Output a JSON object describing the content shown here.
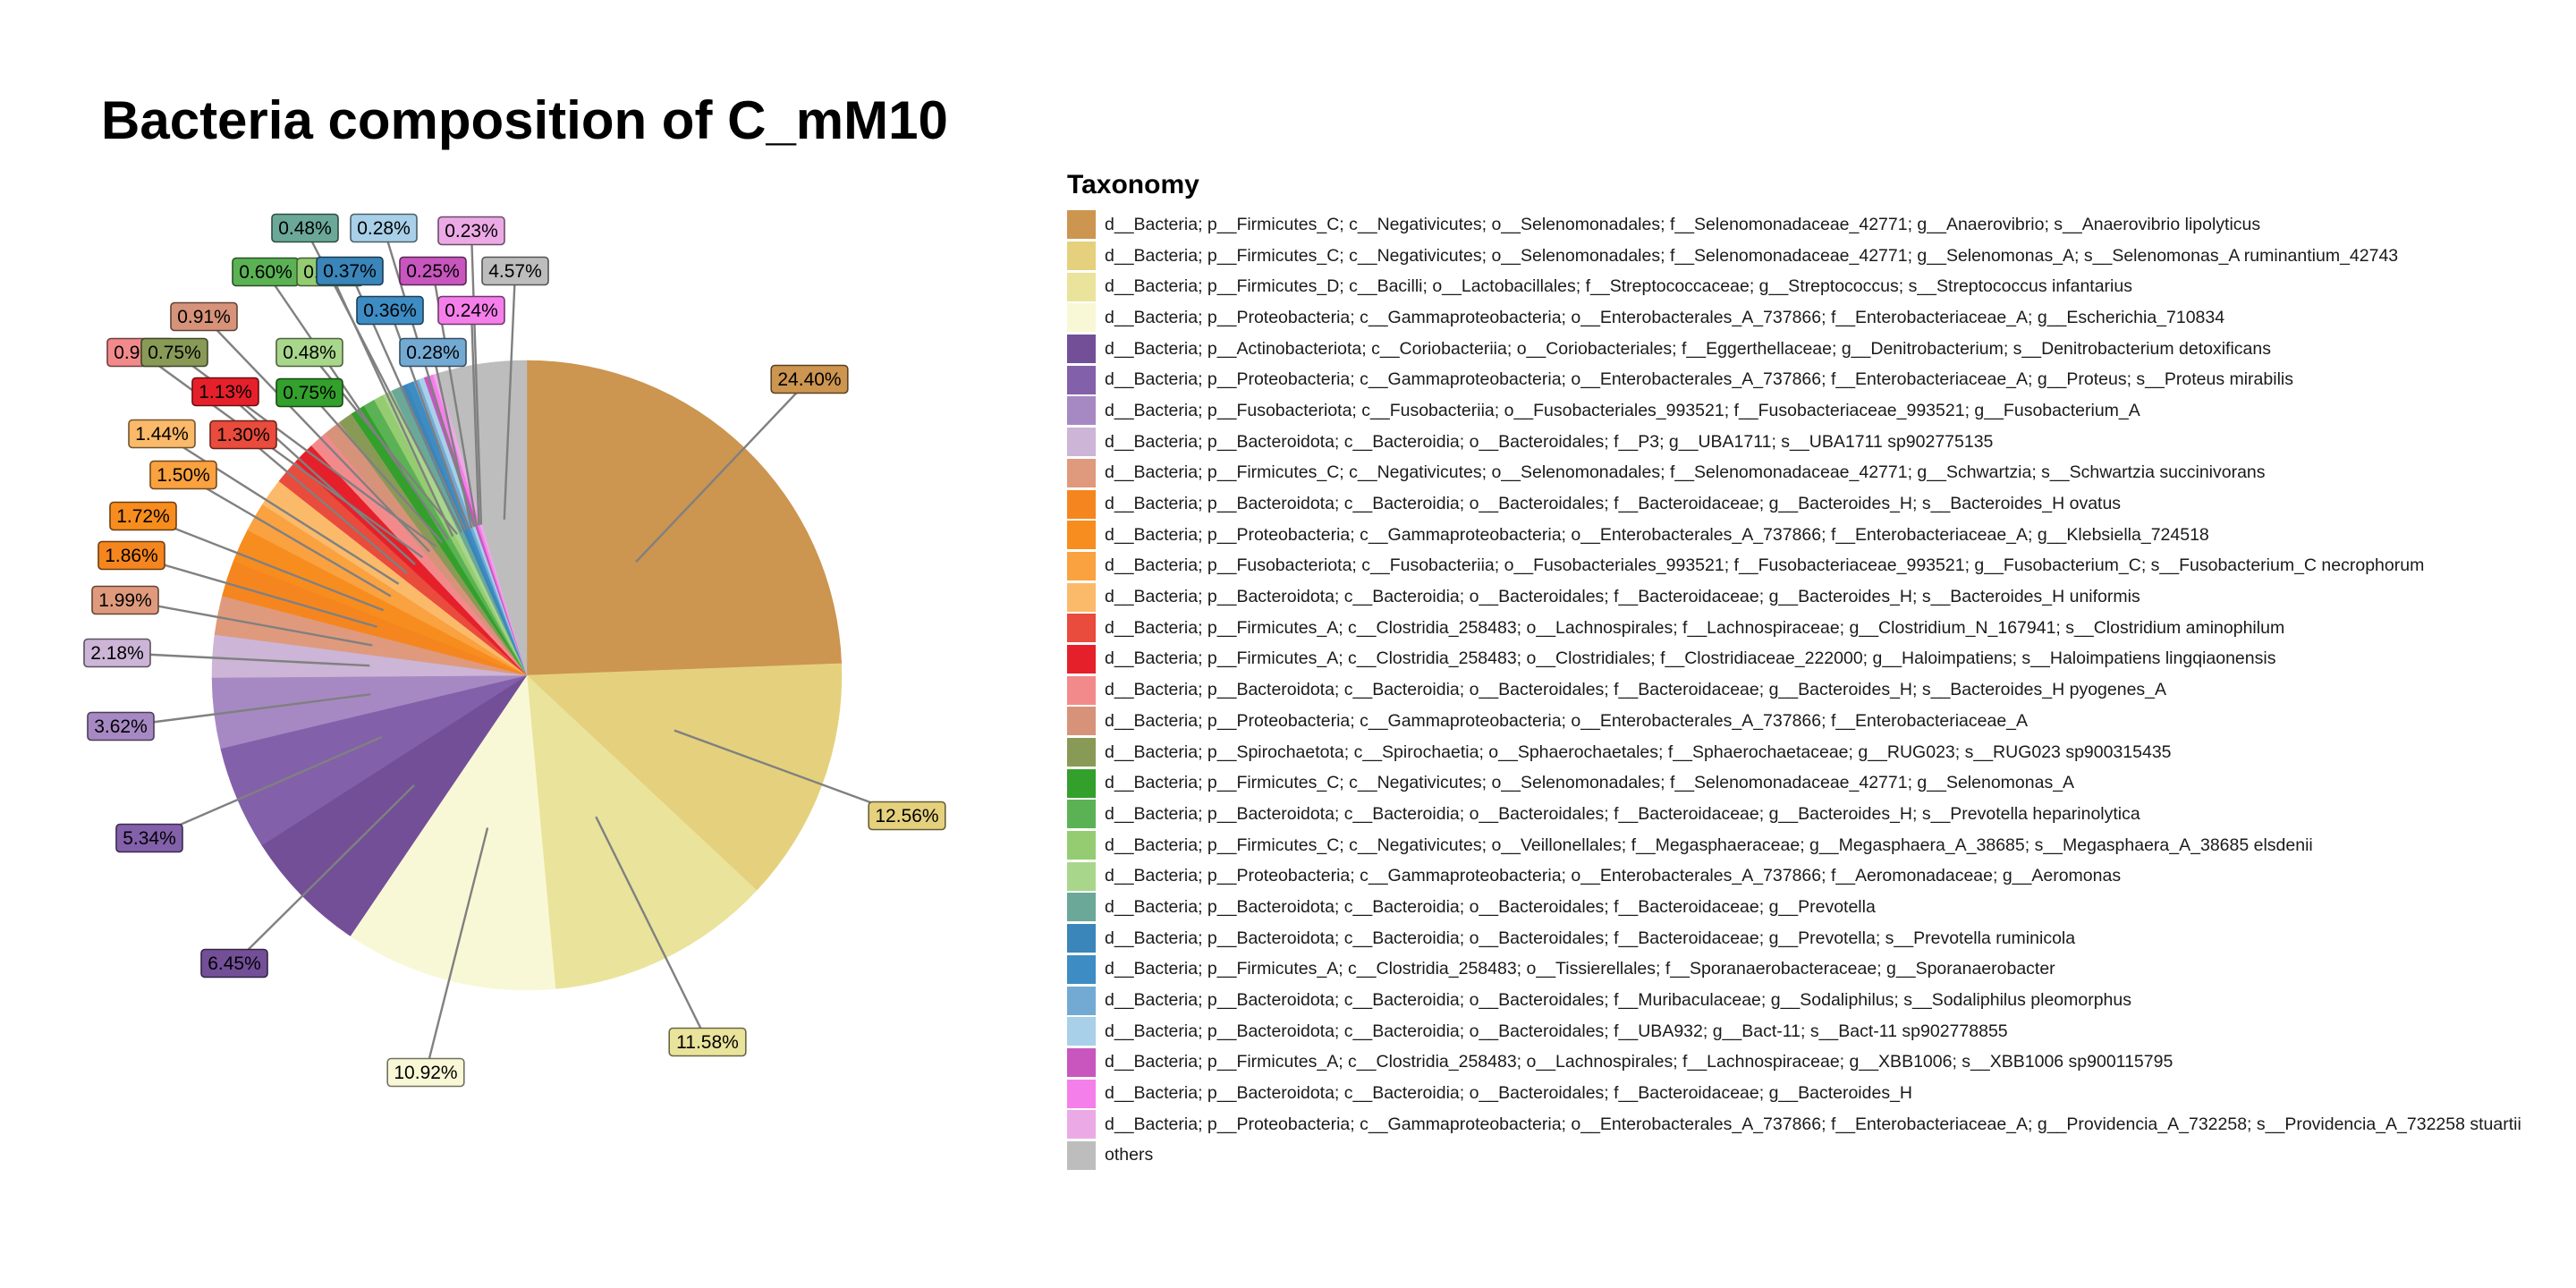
{
  "chart_data": {
    "type": "pie",
    "title": "Bacteria composition of C_mM10",
    "legend_title": "Taxonomy",
    "legend_position": "right",
    "slices": [
      {
        "label": "d__Bacteria; p__Firmicutes_C; c__Negativicutes; o__Selenomonadales; f__Selenomonadaceae_42771; g__Anaerovibrio; s__Anaerovibrio lipolyticus",
        "value": 24.4,
        "display": "24.40%",
        "color": "#CC9550"
      },
      {
        "label": "d__Bacteria; p__Firmicutes_C; c__Negativicutes; o__Selenomonadales; f__Selenomonadaceae_42771; g__Selenomonas_A; s__Selenomonas_A ruminantium_42743",
        "value": 12.56,
        "display": "12.56%",
        "color": "#E5D17D"
      },
      {
        "label": "d__Bacteria; p__Firmicutes_D; c__Bacilli; o__Lactobacillales; f__Streptococcaceae; g__Streptococcus; s__Streptococcus infantarius",
        "value": 11.58,
        "display": "11.58%",
        "color": "#EAE39B"
      },
      {
        "label": "d__Bacteria; p__Proteobacteria; c__Gammaproteobacteria; o__Enterobacterales_A_737866; f__Enterobacteriaceae_A; g__Escherichia_710834",
        "value": 10.92,
        "display": "10.92%",
        "color": "#F9F8D6"
      },
      {
        "label": "d__Bacteria; p__Actinobacteriota; c__Coriobacteriia; o__Coriobacteriales; f__Eggerthellaceae; g__Denitrobacterium; s__Denitrobacterium detoxificans",
        "value": 6.45,
        "display": "6.45%",
        "color": "#734F98"
      },
      {
        "label": "d__Bacteria; p__Proteobacteria; c__Gammaproteobacteria; o__Enterobacterales_A_737866; f__Enterobacteriaceae_A; g__Proteus; s__Proteus mirabilis",
        "value": 5.34,
        "display": "5.34%",
        "color": "#8360AA"
      },
      {
        "label": "d__Bacteria; p__Fusobacteriota; c__Fusobacteriia; o__Fusobacteriales_993521; f__Fusobacteriaceae_993521; g__Fusobacterium_A",
        "value": 3.62,
        "display": "3.62%",
        "color": "#A689C3"
      },
      {
        "label": "d__Bacteria; p__Bacteroidota; c__Bacteroidia; o__Bacteroidales; f__P3; g__UBA1711; s__UBA1711 sp902775135",
        "value": 2.18,
        "display": "2.18%",
        "color": "#CCB5D6"
      },
      {
        "label": "d__Bacteria; p__Firmicutes_C; c__Negativicutes; o__Selenomonadales; f__Selenomonadaceae_42771; g__Schwartzia; s__Schwartzia succinivorans",
        "value": 1.99,
        "display": "1.99%",
        "color": "#DF9A7D"
      },
      {
        "label": "d__Bacteria; p__Bacteroidota; c__Bacteroidia; o__Bacteroidales; f__Bacteroidaceae; g__Bacteroides_H; s__Bacteroides_H ovatus",
        "value": 1.86,
        "display": "1.86%",
        "color": "#F5861F"
      },
      {
        "label": "d__Bacteria; p__Proteobacteria; c__Gammaproteobacteria; o__Enterobacterales_A_737866; f__Enterobacteriaceae_A; g__Klebsiella_724518",
        "value": 1.72,
        "display": "1.72%",
        "color": "#F78D1E"
      },
      {
        "label": "d__Bacteria; p__Fusobacteriota; c__Fusobacteriia; o__Fusobacteriales_993521; f__Fusobacteriaceae_993521; g__Fusobacterium_C; s__Fusobacterium_C necrophorum",
        "value": 1.5,
        "display": "1.50%",
        "color": "#FAA140"
      },
      {
        "label": "d__Bacteria; p__Bacteroidota; c__Bacteroidia; o__Bacteroidales; f__Bacteroidaceae; g__Bacteroides_H; s__Bacteroides_H uniformis",
        "value": 1.44,
        "display": "1.44%",
        "color": "#FBBA6A"
      },
      {
        "label": "d__Bacteria; p__Firmicutes_A; c__Clostridia_258483; o__Lachnospirales; f__Lachnospiraceae; g__Clostridium_N_167941; s__Clostridium aminophilum",
        "value": 1.3,
        "display": "1.30%",
        "color": "#E94B3C"
      },
      {
        "label": "d__Bacteria; p__Firmicutes_A; c__Clostridia_258483; o__Clostridiales; f__Clostridiaceae_222000; g__Haloimpatiens; s__Haloimpatiens lingqiaonensis",
        "value": 1.13,
        "display": "1.13%",
        "color": "#E6202A"
      },
      {
        "label": "d__Bacteria; p__Bacteroidota; c__Bacteroidia; o__Bacteroidales; f__Bacteroidaceae; g__Bacteroides_H; s__Bacteroides_H pyogenes_A",
        "value": 0.93,
        "display": "0.93%",
        "color": "#F28A8C"
      },
      {
        "label": "d__Bacteria; p__Proteobacteria; c__Gammaproteobacteria; o__Enterobacterales_A_737866; f__Enterobacteriaceae_A",
        "value": 0.91,
        "display": "0.91%",
        "color": "#D7937A"
      },
      {
        "label": "d__Bacteria; p__Spirochaetota; c__Spirochaetia; o__Sphaerochaetales; f__Sphaerochaetaceae; g__RUG023; s__RUG023 sp900315435",
        "value": 0.75,
        "display": "0.75%",
        "color": "#899A57"
      },
      {
        "label": "d__Bacteria; p__Firmicutes_C; c__Negativicutes; o__Selenomonadales; f__Selenomonadaceae_42771; g__Selenomonas_A",
        "value": 0.75,
        "display": "0.75%",
        "color": "#33A02C"
      },
      {
        "label": "d__Bacteria; p__Bacteroidota; c__Bacteroidia; o__Bacteroidales; f__Bacteroidaceae; g__Bacteroides_H; s__Prevotella heparinolytica",
        "value": 0.6,
        "display": "0.60%",
        "color": "#5BB254"
      },
      {
        "label": "d__Bacteria; p__Firmicutes_C; c__Negativicutes; o__Veillonellales; f__Megasphaeraceae; g__Megasphaera_A_38685; s__Megasphaera_A_38685 elsdenii",
        "value": 0.51,
        "display": "0.51%",
        "color": "#95CC71"
      },
      {
        "label": "d__Bacteria; p__Proteobacteria; c__Gammaproteobacteria; o__Enterobacterales_A_737866; f__Aeromonadaceae; g__Aeromonas",
        "value": 0.48,
        "display": "0.48%",
        "color": "#A8D78C"
      },
      {
        "label": "d__Bacteria; p__Bacteroidota; c__Bacteroidia; o__Bacteroidales; f__Bacteroidaceae; g__Prevotella",
        "value": 0.48,
        "display": "0.48%",
        "color": "#6BA898"
      },
      {
        "label": "d__Bacteria; p__Bacteroidota; c__Bacteroidia; o__Bacteroidales; f__Bacteroidaceae; g__Prevotella; s__Prevotella ruminicola",
        "value": 0.37,
        "display": "0.37%",
        "color": "#3A85B9"
      },
      {
        "label": "d__Bacteria; p__Firmicutes_A; c__Clostridia_258483; o__Tissierellales; f__Sporanaerobacteraceae; g__Sporanaerobacter",
        "value": 0.36,
        "display": "0.36%",
        "color": "#3E8CC4"
      },
      {
        "label": "d__Bacteria; p__Bacteroidota; c__Bacteroidia; o__Bacteroidales; f__Muribaculaceae; g__Sodaliphilus; s__Sodaliphilus pleomorphus",
        "value": 0.28,
        "display": "0.28%",
        "color": "#73AAD3"
      },
      {
        "label": "d__Bacteria; p__Bacteroidota; c__Bacteroidia; o__Bacteroidales; f__UBA932; g__Bact-11; s__Bact-11 sp902778855",
        "value": 0.28,
        "display": "0.28%",
        "color": "#A8D0E8"
      },
      {
        "label": "d__Bacteria; p__Firmicutes_A; c__Clostridia_258483; o__Lachnospirales; f__Lachnospiraceae; g__XBB1006; s__XBB1006 sp900115795",
        "value": 0.25,
        "display": "0.25%",
        "color": "#C856BE"
      },
      {
        "label": "d__Bacteria; p__Bacteroidota; c__Bacteroidia; o__Bacteroidales; f__Bacteroidaceae; g__Bacteroides_H",
        "value": 0.24,
        "display": "0.24%",
        "color": "#F57FEA"
      },
      {
        "label": "d__Bacteria; p__Proteobacteria; c__Gammaproteobacteria; o__Enterobacterales_A_737866; f__Enterobacteriaceae_A; g__Providencia_A_732258; s__Providencia_A_732258 stuartii",
        "value": 0.23,
        "display": "0.23%",
        "color": "#EBAAE6"
      },
      {
        "label": "others",
        "value": 4.57,
        "display": "4.57%",
        "color": "#BDBDBD"
      }
    ]
  }
}
